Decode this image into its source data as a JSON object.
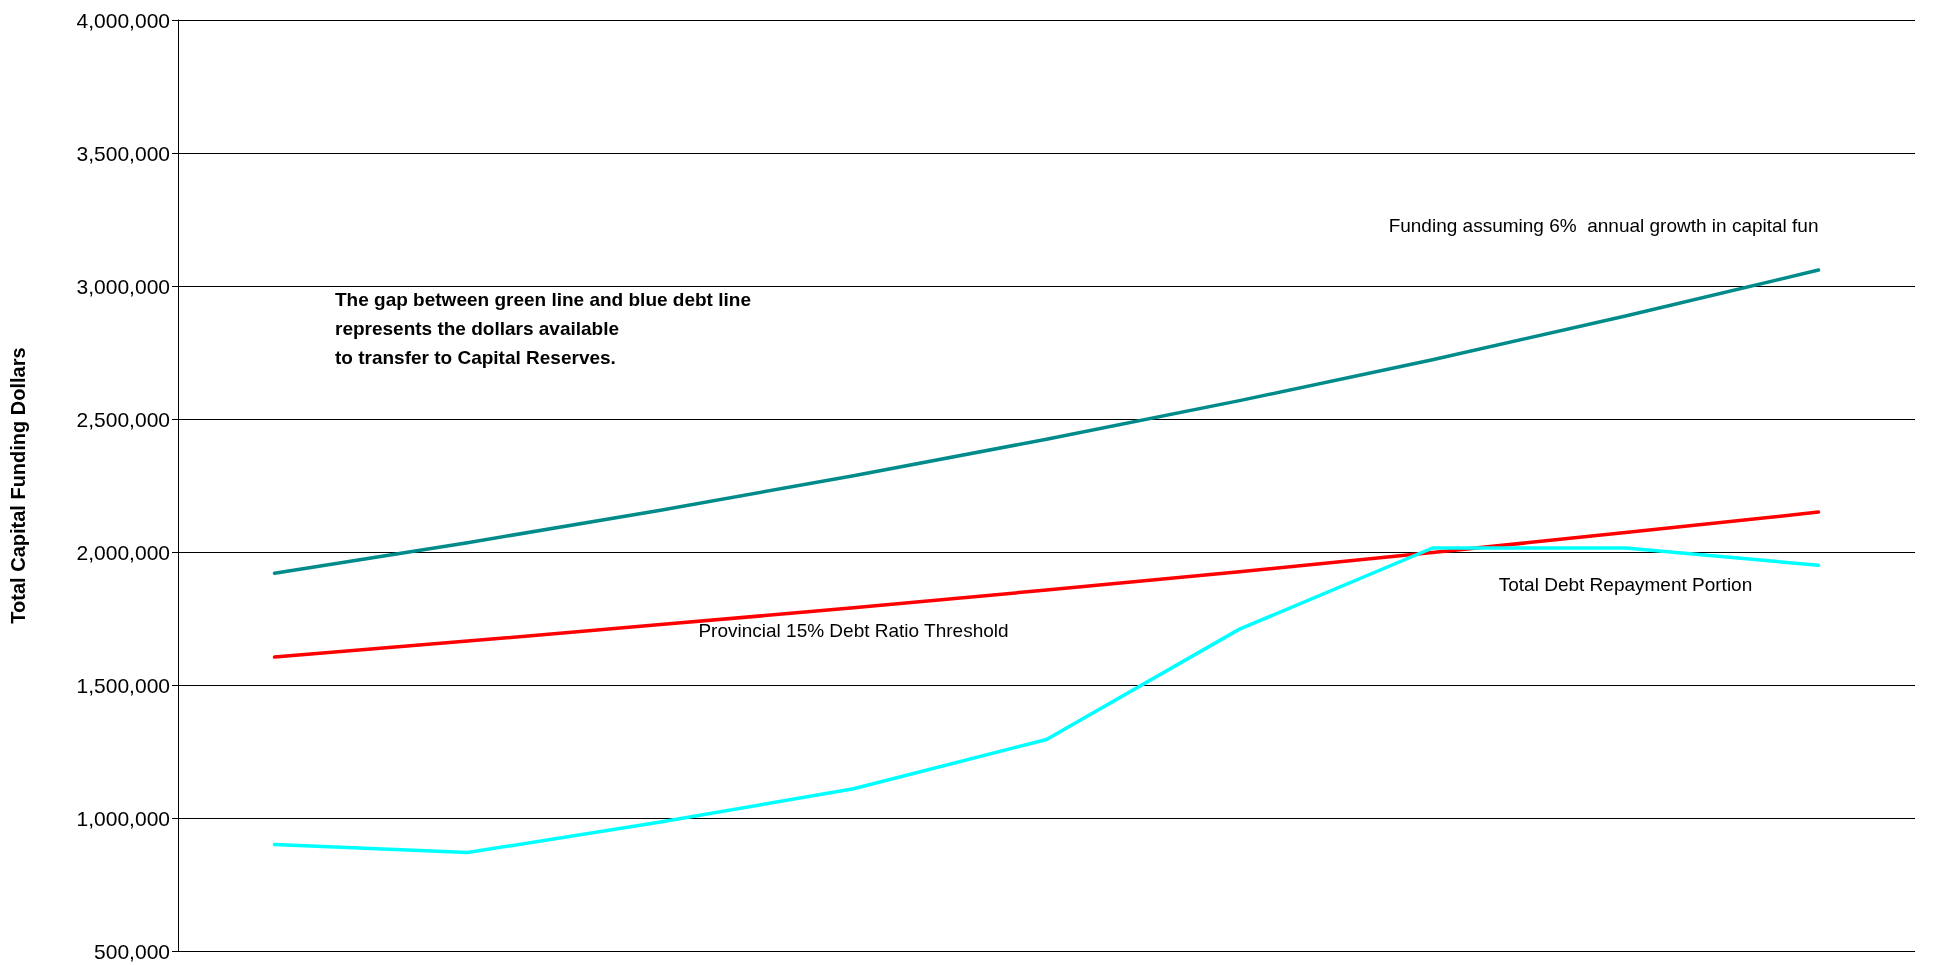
{
  "chart_data": {
    "type": "line",
    "ylabel": "Total Capital Funding Dollars",
    "categories": [
      null,
      null,
      null,
      null,
      null,
      null,
      null,
      null,
      null
    ],
    "ylim": [
      500000,
      4000000
    ],
    "yticks": [
      {
        "value": 500000,
        "label": "500,000"
      },
      {
        "value": 1000000,
        "label": "1,000,000"
      },
      {
        "value": 1500000,
        "label": "1,500,000"
      },
      {
        "value": 2000000,
        "label": "2,000,000"
      },
      {
        "value": 2500000,
        "label": "2,500,000"
      },
      {
        "value": 3000000,
        "label": "3,000,000"
      },
      {
        "value": 3500000,
        "label": "3,500,000"
      },
      {
        "value": 4000000,
        "label": "4,000,000"
      }
    ],
    "grid": "y",
    "legend": false,
    "marker": "none",
    "line_style": "solid",
    "series": [
      {
        "name": "Funding assuming 6%  annual growth in capital fun",
        "color": "#008b8b",
        "values": [
          1920000,
          2035000,
          2157000,
          2287000,
          2424000,
          2569000,
          2723000,
          2887000,
          3060000
        ]
      },
      {
        "name": "Provincial 15% Debt Ratio Threshold",
        "color": "#ff0000",
        "values": [
          1605000,
          1665000,
          1727000,
          1790000,
          1857000,
          1926000,
          1998000,
          2073000,
          2150000
        ]
      },
      {
        "name": "Total Debt Repayment Portion",
        "color": "#00ffff",
        "values": [
          900000,
          870000,
          985000,
          1110000,
          1295000,
          1710000,
          2015000,
          2015000,
          1950000
        ]
      }
    ],
    "annotations": [
      "The gap between green line and blue debt line\nrepresents the dollars available\nto transfer to Capital Reserves."
    ]
  }
}
